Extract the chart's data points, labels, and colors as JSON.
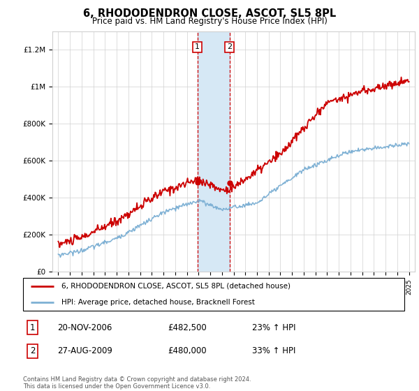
{
  "title": "6, RHODODENDRON CLOSE, ASCOT, SL5 8PL",
  "subtitle": "Price paid vs. HM Land Registry's House Price Index (HPI)",
  "legend_line1": "6, RHODODENDRON CLOSE, ASCOT, SL5 8PL (detached house)",
  "legend_line2": "HPI: Average price, detached house, Bracknell Forest",
  "transaction1_date": "20-NOV-2006",
  "transaction1_price": "£482,500",
  "transaction1_hpi": "23% ↑ HPI",
  "transaction2_date": "27-AUG-2009",
  "transaction2_price": "£480,000",
  "transaction2_hpi": "33% ↑ HPI",
  "footer": "Contains HM Land Registry data © Crown copyright and database right 2024.\nThis data is licensed under the Open Government Licence v3.0.",
  "red_color": "#cc0000",
  "blue_color": "#7db0d4",
  "shaded_color": "#d6e8f5",
  "marker1_x": 2006.9,
  "marker2_x": 2009.65,
  "marker1_y": 482500,
  "marker2_y": 480000,
  "ylim": [
    0,
    1300000
  ],
  "xlim_start": 1994.5,
  "xlim_end": 2025.5,
  "yticks": [
    0,
    200000,
    400000,
    600000,
    800000,
    1000000,
    1200000
  ],
  "ytick_labels": [
    "£0",
    "£200K",
    "£400K",
    "£600K",
    "£800K",
    "£1M",
    "£1.2M"
  ],
  "xticks": [
    1995,
    1996,
    1997,
    1998,
    1999,
    2000,
    2001,
    2002,
    2003,
    2004,
    2005,
    2006,
    2007,
    2008,
    2009,
    2010,
    2011,
    2012,
    2013,
    2014,
    2015,
    2016,
    2017,
    2018,
    2019,
    2020,
    2021,
    2022,
    2023,
    2024,
    2025
  ]
}
